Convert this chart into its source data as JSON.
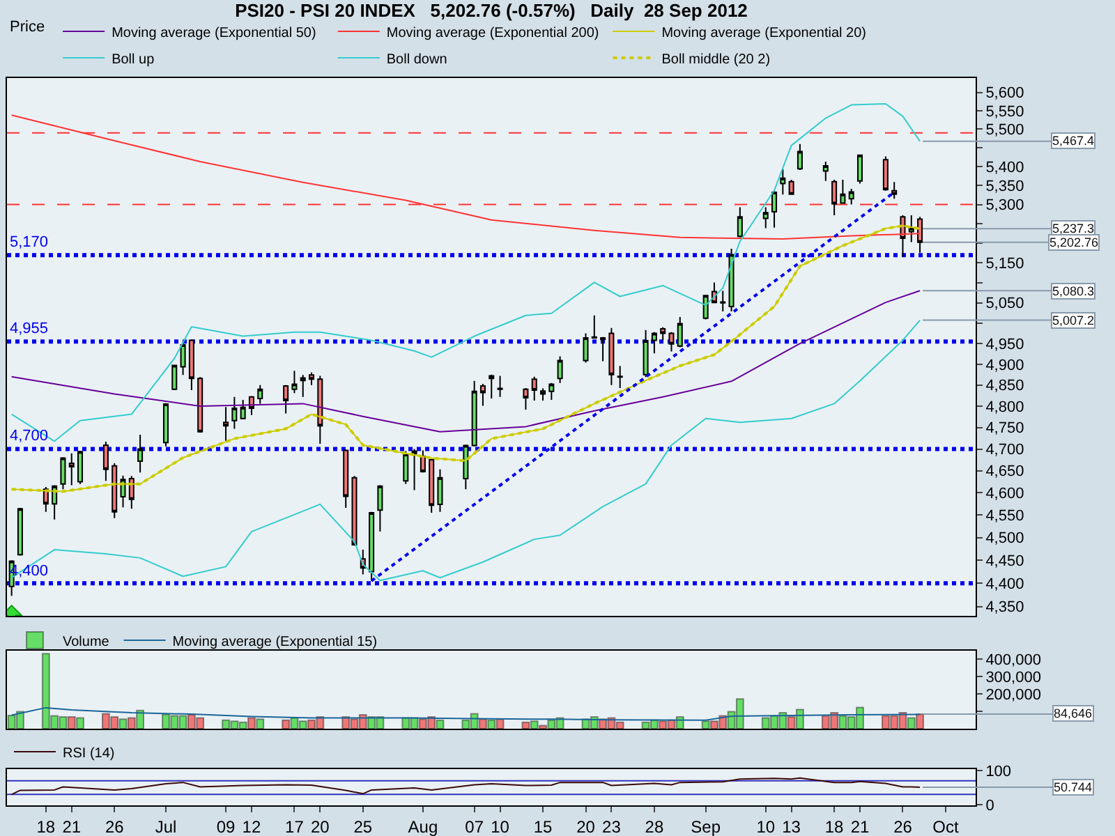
{
  "chart_data": [
    {
      "type": "candlestick",
      "title": "PSI20 - PSI 20 INDEX   5,202.76 (-0.57%)   Daily  28 Sep 2012",
      "legend_title": "Price",
      "legend": "top left",
      "log": true,
      "tick_labels": "y",
      "x": [
        "2012-06-14",
        "2012-06-15",
        "2012-06-18",
        "2012-06-19",
        "2012-06-20",
        "2012-06-21",
        "2012-06-22",
        "2012-06-25",
        "2012-06-26",
        "2012-06-27",
        "2012-06-28",
        "2012-06-29",
        "2012-07-02",
        "2012-07-03",
        "2012-07-04",
        "2012-07-05",
        "2012-07-06",
        "2012-07-09",
        "2012-07-10",
        "2012-07-11",
        "2012-07-12",
        "2012-07-13",
        "2012-07-16",
        "2012-07-17",
        "2012-07-18",
        "2012-07-19",
        "2012-07-20",
        "2012-07-23",
        "2012-07-24",
        "2012-07-25",
        "2012-07-26",
        "2012-07-27",
        "2012-07-30",
        "2012-07-31",
        "2012-08-01",
        "2012-08-02",
        "2012-08-03",
        "2012-08-06",
        "2012-08-07",
        "2012-08-08",
        "2012-08-09",
        "2012-08-10",
        "2012-08-13",
        "2012-08-14",
        "2012-08-15",
        "2012-08-16",
        "2012-08-17",
        "2012-08-20",
        "2012-08-21",
        "2012-08-22",
        "2012-08-23",
        "2012-08-24",
        "2012-08-27",
        "2012-08-28",
        "2012-08-29",
        "2012-08-30",
        "2012-08-31",
        "2012-09-03",
        "2012-09-04",
        "2012-09-05",
        "2012-09-06",
        "2012-09-07",
        "2012-09-10",
        "2012-09-11",
        "2012-09-12",
        "2012-09-13",
        "2012-09-14",
        "2012-09-17",
        "2012-09-18",
        "2012-09-19",
        "2012-09-20",
        "2012-09-21",
        "2012-09-24",
        "2012-09-25",
        "2012-09-26",
        "2012-09-27",
        "2012-09-28"
      ],
      "ohlc": [
        [
          4393,
          4450,
          4373,
          4448
        ],
        [
          4462,
          4566,
          4460,
          4564
        ],
        [
          4608,
          4613,
          4557,
          4575
        ],
        [
          4575,
          4617,
          4540,
          4615
        ],
        [
          4620,
          4681,
          4608,
          4679
        ],
        [
          4667,
          4690,
          4617,
          4659
        ],
        [
          4625,
          4696,
          4620,
          4694
        ],
        [
          4709,
          4717,
          4627,
          4653
        ],
        [
          4661,
          4667,
          4543,
          4557
        ],
        [
          4591,
          4639,
          4567,
          4630
        ],
        [
          4632,
          4638,
          4564,
          4585
        ],
        [
          4672,
          4733,
          4646,
          4700
        ],
        [
          4715,
          4807,
          4706,
          4805
        ],
        [
          4840,
          4898,
          4838,
          4897
        ],
        [
          4894,
          4955,
          4874,
          4947
        ],
        [
          4958,
          4960,
          4838,
          4866
        ],
        [
          4866,
          4869,
          4738,
          4740
        ],
        [
          4762,
          4798,
          4719,
          4754
        ],
        [
          4766,
          4822,
          4747,
          4795
        ],
        [
          4771,
          4815,
          4769,
          4797
        ],
        [
          4822,
          4824,
          4779,
          4795
        ],
        [
          4818,
          4850,
          4806,
          4840
        ],
        [
          4848,
          4850,
          4783,
          4813
        ],
        [
          4840,
          4884,
          4831,
          4852
        ],
        [
          4861,
          4874,
          4822,
          4867
        ],
        [
          4874,
          4880,
          4850,
          4864
        ],
        [
          4864,
          4872,
          4712,
          4754
        ],
        [
          4697,
          4699,
          4566,
          4592
        ],
        [
          4634,
          4638,
          4482,
          4484
        ],
        [
          4453,
          4473,
          4419,
          4433
        ],
        [
          4425,
          4557,
          4405,
          4555
        ],
        [
          4561,
          4617,
          4513,
          4615
        ],
        [
          4627,
          4695,
          4620,
          4688
        ],
        [
          4695,
          4700,
          4606,
          4689
        ],
        [
          4683,
          4697,
          4646,
          4648
        ],
        [
          4675,
          4677,
          4555,
          4572
        ],
        [
          4574,
          4653,
          4557,
          4634
        ],
        [
          4632,
          4710,
          4608,
          4708
        ],
        [
          4708,
          4860,
          4706,
          4835
        ],
        [
          4848,
          4853,
          4801,
          4832
        ],
        [
          4866,
          4875,
          4818,
          4872
        ],
        [
          4842,
          4872,
          4822,
          4840
        ],
        [
          4840,
          4843,
          4792,
          4820
        ],
        [
          4864,
          4870,
          4813,
          4838
        ],
        [
          4836,
          4842,
          4813,
          4829
        ],
        [
          4835,
          4855,
          4815,
          4852
        ],
        [
          4866,
          4919,
          4855,
          4909
        ],
        [
          4909,
          4975,
          4904,
          4964
        ],
        [
          4966,
          5019,
          4964,
          4964
        ],
        [
          4964,
          4966,
          4907,
          4960
        ],
        [
          4975,
          4988,
          4850,
          4875
        ],
        [
          4871,
          4896,
          4843,
          4869
        ],
        [
          4875,
          4983,
          4869,
          4957
        ],
        [
          4958,
          4978,
          4926,
          4975
        ],
        [
          4986,
          4990,
          4958,
          4975
        ],
        [
          4975,
          4978,
          4931,
          4949
        ],
        [
          4944,
          5015,
          4941,
          4999
        ],
        [
          5012,
          5070,
          5009,
          5068
        ],
        [
          5078,
          5101,
          5051,
          5051
        ],
        [
          5052,
          5080,
          5029,
          5050
        ],
        [
          5041,
          5186,
          5029,
          5171
        ],
        [
          5218,
          5293,
          5215,
          5268
        ],
        [
          5264,
          5293,
          5239,
          5279
        ],
        [
          5281,
          5335,
          5240,
          5332
        ],
        [
          5355,
          5393,
          5326,
          5369
        ],
        [
          5360,
          5365,
          5327,
          5327
        ],
        [
          5394,
          5460,
          5391,
          5440
        ],
        [
          5388,
          5413,
          5362,
          5402
        ],
        [
          5360,
          5365,
          5272,
          5302
        ],
        [
          5304,
          5365,
          5302,
          5327
        ],
        [
          5315,
          5341,
          5300,
          5333
        ],
        [
          5362,
          5432,
          5355,
          5430
        ],
        [
          5418,
          5427,
          5336,
          5339
        ],
        [
          5336,
          5359,
          5315,
          5327
        ],
        [
          5268,
          5272,
          5165,
          5213
        ],
        [
          5230,
          5272,
          5203,
          5239
        ],
        [
          5262,
          5268,
          5176,
          5202.76
        ]
      ],
      "series": [
        {
          "name": "Moving average (Exponential 50)",
          "type": "line",
          "color": "#660099",
          "x": [
            "2012-06-14",
            "2012-06-26",
            "2012-07-06",
            "2012-07-18",
            "2012-07-25",
            "2012-08-03",
            "2012-08-13",
            "2012-08-21",
            "2012-08-29",
            "2012-09-06",
            "2012-09-14",
            "2012-09-24",
            "2012-09-28"
          ],
          "values": [
            4870,
            4829,
            4800,
            4806,
            4776,
            4740,
            4752,
            4789,
            4822,
            4859,
            4950,
            5051,
            5080.3
          ]
        },
        {
          "name": "Moving average (Exponential 200)",
          "type": "line",
          "color": "#ff3333",
          "x": [
            "2012-06-14",
            "2012-06-26",
            "2012-07-06",
            "2012-07-18",
            "2012-07-30",
            "2012-08-09",
            "2012-08-21",
            "2012-08-31",
            "2012-09-12",
            "2012-09-20",
            "2012-09-28"
          ],
          "values": [
            5538,
            5469,
            5413,
            5358,
            5311,
            5260,
            5233,
            5215,
            5211,
            5219,
            5225
          ]
        },
        {
          "name": "Moving average (Exponential 20)",
          "type": "line",
          "color": "#cccc00",
          "x": [
            "2012-06-14",
            "2012-06-20",
            "2012-06-26",
            "2012-06-29",
            "2012-07-04",
            "2012-07-10",
            "2012-07-16",
            "2012-07-19",
            "2012-07-23",
            "2012-07-25",
            "2012-07-30",
            "2012-08-02",
            "2012-08-06",
            "2012-08-09",
            "2012-08-15",
            "2012-08-21",
            "2012-08-27",
            "2012-08-31",
            "2012-09-04",
            "2012-09-06",
            "2012-09-11",
            "2012-09-14",
            "2012-09-19",
            "2012-09-24",
            "2012-09-26",
            "2012-09-28"
          ],
          "values": [
            4608,
            4603,
            4620,
            4620,
            4680,
            4724,
            4747,
            4781,
            4757,
            4709,
            4690,
            4679,
            4673,
            4724,
            4747,
            4806,
            4861,
            4896,
            4923,
            4955,
            5041,
            5142,
            5194,
            5238,
            5245,
            5237.3
          ]
        },
        {
          "name": "Boll up",
          "type": "line",
          "color": "#33cccc",
          "x": [
            "2012-06-14",
            "2012-06-19",
            "2012-06-22",
            "2012-06-28",
            "2012-07-03",
            "2012-07-05",
            "2012-07-11",
            "2012-07-17",
            "2012-07-20",
            "2012-07-26",
            "2012-07-31",
            "2012-08-02",
            "2012-08-07",
            "2012-08-13",
            "2012-08-16",
            "2012-08-21",
            "2012-08-24",
            "2012-08-29",
            "2012-09-03",
            "2012-09-05",
            "2012-09-07",
            "2012-09-11",
            "2012-09-13",
            "2012-09-17",
            "2012-09-20",
            "2012-09-24",
            "2012-09-26",
            "2012-09-28"
          ],
          "values": [
            4781,
            4718,
            4766,
            4781,
            4914,
            4991,
            4968,
            4978,
            4978,
            4958,
            4932,
            4917,
            4968,
            5019,
            5024,
            5101,
            5066,
            5093,
            5044,
            5087,
            5205,
            5337,
            5456,
            5530,
            5566,
            5569,
            5535,
            5467.4
          ]
        },
        {
          "name": "Boll down",
          "type": "line",
          "color": "#33cccc",
          "x": [
            "2012-06-14",
            "2012-06-19",
            "2012-06-25",
            "2012-06-29",
            "2012-07-04",
            "2012-07-09",
            "2012-07-12",
            "2012-07-17",
            "2012-07-20",
            "2012-07-24",
            "2012-07-25",
            "2012-07-27",
            "2012-08-01",
            "2012-08-03",
            "2012-08-08",
            "2012-08-14",
            "2012-08-17",
            "2012-08-22",
            "2012-08-27",
            "2012-08-30",
            "2012-09-03",
            "2012-09-07",
            "2012-09-13",
            "2012-09-18",
            "2012-09-21",
            "2012-09-26",
            "2012-09-28"
          ],
          "values": [
            4412,
            4473,
            4464,
            4455,
            4415,
            4436,
            4513,
            4551,
            4574,
            4491,
            4441,
            4406,
            4427,
            4412,
            4446,
            4496,
            4505,
            4569,
            4620,
            4709,
            4771,
            4762,
            4771,
            4806,
            4860,
            4958,
            5007.2
          ]
        },
        {
          "name": "Boll middle (20 2)",
          "type": "line",
          "color": "#cccc00",
          "line_style": "dotted",
          "x": [
            "2012-06-14",
            "2012-06-20",
            "2012-06-26",
            "2012-06-29",
            "2012-07-04",
            "2012-07-10",
            "2012-07-16",
            "2012-07-19",
            "2012-07-23",
            "2012-07-25",
            "2012-07-30",
            "2012-08-02",
            "2012-08-06",
            "2012-08-09",
            "2012-08-15",
            "2012-08-21",
            "2012-08-27",
            "2012-08-31",
            "2012-09-04",
            "2012-09-06",
            "2012-09-11",
            "2012-09-14",
            "2012-09-19",
            "2012-09-24",
            "2012-09-26",
            "2012-09-28"
          ],
          "values": [
            4608,
            4603,
            4620,
            4620,
            4680,
            4724,
            4747,
            4781,
            4757,
            4709,
            4690,
            4679,
            4673,
            4724,
            4747,
            4806,
            4861,
            4896,
            4923,
            4955,
            5041,
            5142,
            5194,
            5238,
            5245,
            5237.3
          ]
        },
        {
          "type": "line",
          "color": "#0000ee",
          "line_style": "dotted",
          "x": [
            "2012-07-26",
            "2012-09-25"
          ],
          "values": [
            4405,
            5332
          ]
        }
      ],
      "xlim": [
        "2012-06-13T11:00",
        "2012-10-04T12:00"
      ],
      "ylim": [
        4330,
        5640
      ],
      "yticks": [
        {
          "value": 4350,
          "label": "4,350"
        },
        {
          "value": 4400,
          "label": "4,400"
        },
        {
          "value": 4450,
          "label": "4,450"
        },
        {
          "value": 4500,
          "label": "4,500"
        },
        {
          "value": 4550,
          "label": "4,550"
        },
        {
          "value": 4600,
          "label": "4,600"
        },
        {
          "value": 4650,
          "label": "4,650"
        },
        {
          "value": 4700,
          "label": "4,700"
        },
        {
          "value": 4750,
          "label": "4,750"
        },
        {
          "value": 4800,
          "label": "4,800"
        },
        {
          "value": 4850,
          "label": "4,850"
        },
        {
          "value": 4900,
          "label": "4,900"
        },
        {
          "value": 4950,
          "label": "4,950"
        },
        {
          "value": 5000,
          "label": null
        },
        {
          "value": 5050,
          "label": "5,050"
        },
        {
          "value": 5100,
          "label": null
        },
        {
          "value": 5150,
          "label": "5,150"
        },
        {
          "value": 5200,
          "label": null
        },
        {
          "value": 5250,
          "label": null
        },
        {
          "value": 5300,
          "label": "5,300"
        },
        {
          "value": 5350,
          "label": "5,350"
        },
        {
          "value": 5400,
          "label": "5,400"
        },
        {
          "value": 5450,
          "label": null
        },
        {
          "value": 5500,
          "label": "5,500"
        },
        {
          "value": 5550,
          "label": "5,550"
        },
        {
          "value": 5600,
          "label": "5,600"
        }
      ],
      "ref_lines": [
        {
          "axis": "y",
          "value": 4400,
          "label": "4,400",
          "color": "#0000ee",
          "line_style": "dotted"
        },
        {
          "axis": "y",
          "value": 4700,
          "label": "4,700",
          "color": "#0000ee",
          "line_style": "dotted"
        },
        {
          "axis": "y",
          "value": 4955,
          "label": "4,955",
          "color": "#0000ee",
          "line_style": "dotted"
        },
        {
          "axis": "y",
          "value": 5170,
          "label": "5,170",
          "color": "#0000ee",
          "line_style": "dotted"
        },
        {
          "axis": "y",
          "value": 5300,
          "color": "#ff3333",
          "line_style": "dashed"
        },
        {
          "axis": "y",
          "value": 5490,
          "color": "#ff3333",
          "line_style": "dashed"
        }
      ],
      "annotations": [
        {
          "text": "5,467.4",
          "x": "2012-09-28",
          "y": 5467.4
        },
        {
          "text": "5,237.3",
          "x": "2012-09-28",
          "y": 5237.3
        },
        {
          "text": "5,202.76",
          "x": "2012-09-28",
          "y": 5202.76
        },
        {
          "text": "5,080.3",
          "x": "2012-09-28",
          "y": 5080.3
        },
        {
          "text": "5,007.2",
          "x": "2012-09-28",
          "y": 5007.2
        }
      ]
    },
    {
      "type": "bar",
      "legend": "top left",
      "tick_labels": "y",
      "x": [
        "2012-06-14",
        "2012-06-15",
        "2012-06-18",
        "2012-06-19",
        "2012-06-20",
        "2012-06-21",
        "2012-06-22",
        "2012-06-25",
        "2012-06-26",
        "2012-06-27",
        "2012-06-28",
        "2012-06-29",
        "2012-07-02",
        "2012-07-03",
        "2012-07-04",
        "2012-07-05",
        "2012-07-06",
        "2012-07-09",
        "2012-07-10",
        "2012-07-11",
        "2012-07-12",
        "2012-07-13",
        "2012-07-16",
        "2012-07-17",
        "2012-07-18",
        "2012-07-19",
        "2012-07-20",
        "2012-07-23",
        "2012-07-24",
        "2012-07-25",
        "2012-07-26",
        "2012-07-27",
        "2012-07-30",
        "2012-07-31",
        "2012-08-01",
        "2012-08-02",
        "2012-08-03",
        "2012-08-06",
        "2012-08-07",
        "2012-08-08",
        "2012-08-09",
        "2012-08-10",
        "2012-08-13",
        "2012-08-14",
        "2012-08-15",
        "2012-08-16",
        "2012-08-17",
        "2012-08-20",
        "2012-08-21",
        "2012-08-22",
        "2012-08-23",
        "2012-08-24",
        "2012-08-27",
        "2012-08-28",
        "2012-08-29",
        "2012-08-30",
        "2012-08-31",
        "2012-09-03",
        "2012-09-04",
        "2012-09-05",
        "2012-09-06",
        "2012-09-07",
        "2012-09-10",
        "2012-09-11",
        "2012-09-12",
        "2012-09-13",
        "2012-09-14",
        "2012-09-17",
        "2012-09-18",
        "2012-09-19",
        "2012-09-20",
        "2012-09-21",
        "2012-09-24",
        "2012-09-25",
        "2012-09-26",
        "2012-09-27",
        "2012-09-28"
      ],
      "series": [
        {
          "name": "Volume",
          "colors": [
            "#66dd66",
            "#66dd66",
            "#66dd66",
            "#66dd66",
            "#66dd66",
            "#ee7777",
            "#66dd66",
            "#ee7777",
            "#ee7777",
            "#66dd66",
            "#ee7777",
            "#66dd66",
            "#66dd66",
            "#66dd66",
            "#66dd66",
            "#ee7777",
            "#ee7777",
            "#66dd66",
            "#66dd66",
            "#66dd66",
            "#ee7777",
            "#66dd66",
            "#ee7777",
            "#66dd66",
            "#66dd66",
            "#ee7777",
            "#ee7777",
            "#ee7777",
            "#ee7777",
            "#ee7777",
            "#66dd66",
            "#66dd66",
            "#66dd66",
            "#66dd66",
            "#ee7777",
            "#ee7777",
            "#66dd66",
            "#66dd66",
            "#66dd66",
            "#ee7777",
            "#66dd66",
            "#ee7777",
            "#ee7777",
            "#66dd66",
            "#ee7777",
            "#66dd66",
            "#66dd66",
            "#66dd66",
            "#66dd66",
            "#ee7777",
            "#ee7777",
            "#ee7777",
            "#66dd66",
            "#66dd66",
            "#ee7777",
            "#ee7777",
            "#66dd66",
            "#66dd66",
            "#ee7777",
            "#ee7777",
            "#66dd66",
            "#66dd66",
            "#66dd66",
            "#66dd66",
            "#66dd66",
            "#ee7777",
            "#66dd66",
            "#ee7777",
            "#ee7777",
            "#66dd66",
            "#66dd66",
            "#66dd66",
            "#ee7777",
            "#ee7777",
            "#ee7777",
            "#66dd66",
            "#ee7777"
          ],
          "values": [
            76000,
            98000,
            433000,
            74000,
            68000,
            68000,
            62000,
            86000,
            68000,
            55000,
            62000,
            105000,
            82000,
            74000,
            74000,
            80000,
            62000,
            49000,
            43000,
            37000,
            62000,
            55000,
            49000,
            62000,
            43000,
            49000,
            68000,
            68000,
            55000,
            80000,
            68000,
            68000,
            62000,
            62000,
            55000,
            68000,
            49000,
            49000,
            86000,
            55000,
            49000,
            55000,
            37000,
            43000,
            18000,
            49000,
            62000,
            55000,
            68000,
            55000,
            62000,
            37000,
            37000,
            49000,
            43000,
            49000,
            68000,
            43000,
            43000,
            74000,
            98000,
            172000,
            62000,
            74000,
            92000,
            68000,
            111000,
            74000,
            92000,
            74000,
            68000,
            123000,
            74000,
            74000,
            92000,
            62000,
            84646
          ]
        },
        {
          "name": "Moving average (Exponential 15)",
          "type": "line",
          "color": "#1a6699",
          "x": [
            "2012-06-14",
            "2012-06-18",
            "2012-06-21",
            "2012-06-28",
            "2012-07-05",
            "2012-07-12",
            "2012-07-19",
            "2012-07-30",
            "2012-08-09",
            "2012-08-16",
            "2012-08-23",
            "2012-09-03",
            "2012-09-06",
            "2012-09-13",
            "2012-09-20",
            "2012-09-28"
          ],
          "values": [
            78000,
            121000,
            109000,
            92000,
            84000,
            70000,
            62000,
            62000,
            57000,
            55000,
            51000,
            49000,
            72000,
            76000,
            80000,
            82000
          ]
        }
      ],
      "xlim": [
        "2012-06-13T11:00",
        "2012-10-04T12:00"
      ],
      "ylim": [
        0,
        450000
      ],
      "yticks": [
        {
          "value": 100000,
          "label": null
        },
        {
          "value": 200000,
          "label": "200,000"
        },
        {
          "value": 300000,
          "label": "300,000"
        },
        {
          "value": 400000,
          "label": "400,000"
        }
      ],
      "annotations": [
        {
          "text": "84,646",
          "x": "2012-09-28",
          "y": 84646
        }
      ]
    },
    {
      "type": "line",
      "legend": "top left",
      "series": [
        {
          "name": "RSI (14)",
          "color": "#3a0a0a",
          "x": [
            "2012-06-14",
            "2012-06-15",
            "2012-06-19",
            "2012-06-20",
            "2012-06-26",
            "2012-06-28",
            "2012-07-02",
            "2012-07-04",
            "2012-07-06",
            "2012-07-11",
            "2012-07-16",
            "2012-07-19",
            "2012-07-23",
            "2012-07-25",
            "2012-07-26",
            "2012-07-31",
            "2012-08-02",
            "2012-08-07",
            "2012-08-09",
            "2012-08-13",
            "2012-08-16",
            "2012-08-17",
            "2012-08-22",
            "2012-08-23",
            "2012-08-28",
            "2012-08-30",
            "2012-08-31",
            "2012-09-05",
            "2012-09-07",
            "2012-09-11",
            "2012-09-13",
            "2012-09-14",
            "2012-09-18",
            "2012-09-20",
            "2012-09-21",
            "2012-09-24",
            "2012-09-26",
            "2012-09-27",
            "2012-09-28"
          ],
          "values": [
            30,
            42,
            43,
            52,
            43,
            47,
            61,
            65,
            52,
            56,
            58,
            57,
            42,
            32,
            43,
            49,
            43,
            58,
            61,
            56,
            57,
            65,
            65,
            56,
            62,
            58,
            65,
            67,
            75,
            77,
            75,
            78,
            65,
            65,
            68,
            62,
            52,
            52,
            50.744
          ]
        }
      ],
      "xlim": [
        "2012-06-13T11:00",
        "2012-10-04T12:00"
      ],
      "xticks": [
        {
          "value": "2012-06-18",
          "label": "18"
        },
        {
          "value": "2012-06-21",
          "label": "21"
        },
        {
          "value": "2012-06-26",
          "label": "26"
        },
        {
          "value": "2012-07-02",
          "label": "Jul"
        },
        {
          "value": "2012-07-09",
          "label": "09"
        },
        {
          "value": "2012-07-12",
          "label": "12"
        },
        {
          "value": "2012-07-17",
          "label": "17"
        },
        {
          "value": "2012-07-20",
          "label": "20"
        },
        {
          "value": "2012-07-25",
          "label": "25"
        },
        {
          "value": "2012-08-01",
          "label": "Aug"
        },
        {
          "value": "2012-08-07",
          "label": "07"
        },
        {
          "value": "2012-08-10",
          "label": "10"
        },
        {
          "value": "2012-08-15",
          "label": "15"
        },
        {
          "value": "2012-08-20",
          "label": "20"
        },
        {
          "value": "2012-08-23",
          "label": "23"
        },
        {
          "value": "2012-08-28",
          "label": "28"
        },
        {
          "value": "2012-09-03",
          "label": "Sep"
        },
        {
          "value": "2012-09-10",
          "label": "10"
        },
        {
          "value": "2012-09-13",
          "label": "13"
        },
        {
          "value": "2012-09-18",
          "label": "18"
        },
        {
          "value": "2012-09-21",
          "label": "21"
        },
        {
          "value": "2012-09-26",
          "label": "26"
        },
        {
          "value": "2012-10-01",
          "label": "Oct"
        }
      ],
      "ylim": [
        -2,
        104
      ],
      "yticks": [
        0,
        100
      ],
      "ref_lines": [
        {
          "axis": "y",
          "value": 70,
          "color": "#3333bb",
          "line_style": "solid"
        },
        {
          "axis": "y",
          "value": 30,
          "color": "#3333bb",
          "line_style": "solid"
        }
      ],
      "annotations": [
        {
          "text": "50.744",
          "x": "2012-09-28",
          "y": 50.744
        }
      ]
    }
  ]
}
